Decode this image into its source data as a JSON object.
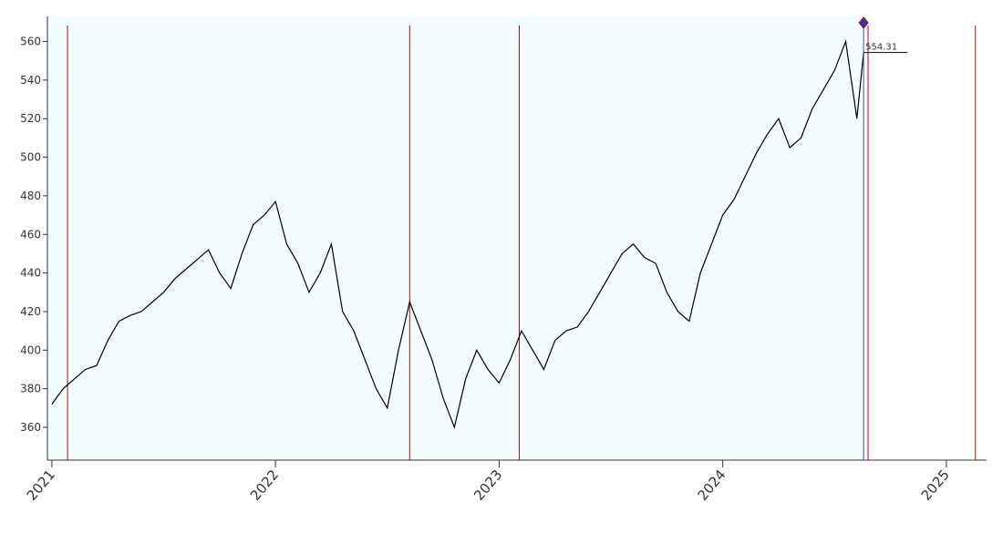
{
  "chart_data": {
    "type": "line",
    "x": [
      2021.0,
      2021.05,
      2021.1,
      2021.15,
      2021.2,
      2021.25,
      2021.3,
      2021.35,
      2021.4,
      2021.45,
      2021.5,
      2021.55,
      2021.6,
      2021.65,
      2021.7,
      2021.75,
      2021.8,
      2021.85,
      2021.9,
      2021.95,
      2022.0,
      2022.05,
      2022.1,
      2022.15,
      2022.2,
      2022.25,
      2022.3,
      2022.35,
      2022.4,
      2022.45,
      2022.5,
      2022.55,
      2022.6,
      2022.65,
      2022.7,
      2022.75,
      2022.8,
      2022.85,
      2022.9,
      2022.95,
      2023.0,
      2023.05,
      2023.1,
      2023.15,
      2023.2,
      2023.25,
      2023.3,
      2023.35,
      2023.4,
      2023.45,
      2023.5,
      2023.55,
      2023.6,
      2023.65,
      2023.7,
      2023.75,
      2023.8,
      2023.85,
      2023.9,
      2023.95,
      2024.0,
      2024.05,
      2024.1,
      2024.15,
      2024.2,
      2024.25,
      2024.3,
      2024.35,
      2024.4,
      2024.45,
      2024.5,
      2024.55,
      2024.6,
      2024.63
    ],
    "series": [
      {
        "color": "#000000",
        "values": [
          372,
          380,
          385,
          390,
          392,
          405,
          415,
          418,
          420,
          425,
          430,
          437,
          442,
          447,
          452,
          440,
          432,
          450,
          465,
          470,
          477,
          455,
          445,
          430,
          440,
          455,
          420,
          410,
          395,
          380,
          370,
          400,
          425,
          410,
          395,
          375,
          360,
          385,
          400,
          390,
          383,
          395,
          410,
          400,
          390,
          405,
          410,
          412,
          420,
          430,
          440,
          450,
          455,
          448,
          445,
          430,
          420,
          415,
          440,
          455,
          470,
          478,
          490,
          502,
          512,
          520,
          505,
          510,
          525,
          535,
          545,
          560,
          520,
          554.31
        ],
        "value_labels": [
          null,
          null,
          null,
          null,
          null,
          null,
          null,
          null,
          null,
          null,
          null,
          null,
          null,
          null,
          null,
          null,
          null,
          null,
          null,
          null,
          null,
          null,
          null,
          null,
          null,
          null,
          null,
          null,
          null,
          null,
          null,
          null,
          null,
          null,
          null,
          null,
          null,
          null,
          null,
          null,
          null,
          null,
          null,
          null,
          null,
          null,
          null,
          null,
          null,
          null,
          null,
          null,
          null,
          null,
          null,
          null,
          null,
          null,
          null,
          null,
          null,
          null,
          null,
          null,
          null,
          null,
          null,
          null,
          null,
          null,
          null,
          null,
          null,
          "554.31"
        ]
      }
    ],
    "vlines": [
      2021.07,
      2022.6,
      2023.09,
      2024.65,
      2025.13
    ],
    "vline_color": "#c00000",
    "shade_end": 2024.63,
    "shade_color": "#f3fdfd",
    "xlim": [
      2020.98,
      2025.18
    ],
    "xticks": [
      2021,
      2022,
      2023,
      2024,
      2025
    ],
    "ylim": [
      343,
      573
    ],
    "yticks": [
      360,
      380,
      400,
      420,
      440,
      460,
      480,
      500,
      520,
      540,
      560
    ]
  }
}
